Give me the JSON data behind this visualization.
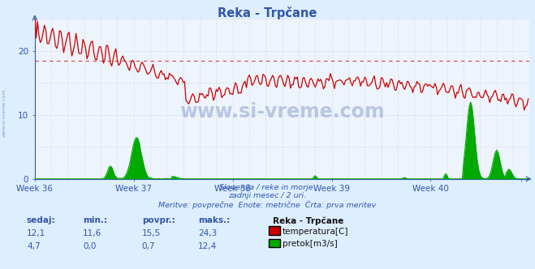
{
  "title": "Reka - Trpčane",
  "background_color": "#ddeeff",
  "plot_bg_color": "#eef4fb",
  "grid_color": "#c0cce0",
  "text_color": "#3355aa",
  "ylim": [
    0,
    25
  ],
  "xlim_max": 360,
  "avg_line_value": 18.5,
  "subtitle1": "Slovenija / reke in morje.",
  "subtitle2": "zadnji mesec / 2 uri.",
  "subtitle3": "Meritve: povprečne  Enote: metrične  Črta: prva meritev",
  "legend_title": "Reka - Trpčane",
  "legend_items": [
    {
      "label": "temperatura[C]",
      "color": "#cc0000"
    },
    {
      "label": "pretok[m3/s]",
      "color": "#00aa00"
    }
  ],
  "stats_headers": [
    "sedaj:",
    "min.:",
    "povpr.:",
    "maks.:"
  ],
  "stats_temp": [
    "12,1",
    "11,6",
    "15,5",
    "24,3"
  ],
  "stats_flow": [
    "4,7",
    "0,0",
    "0,7",
    "12,4"
  ],
  "temp_color": "#cc0000",
  "flow_color": "#00aa00",
  "watermark": "www.si-vreme.com",
  "watermark_color": "#3355aa",
  "side_text": "www.si-vreme.com"
}
